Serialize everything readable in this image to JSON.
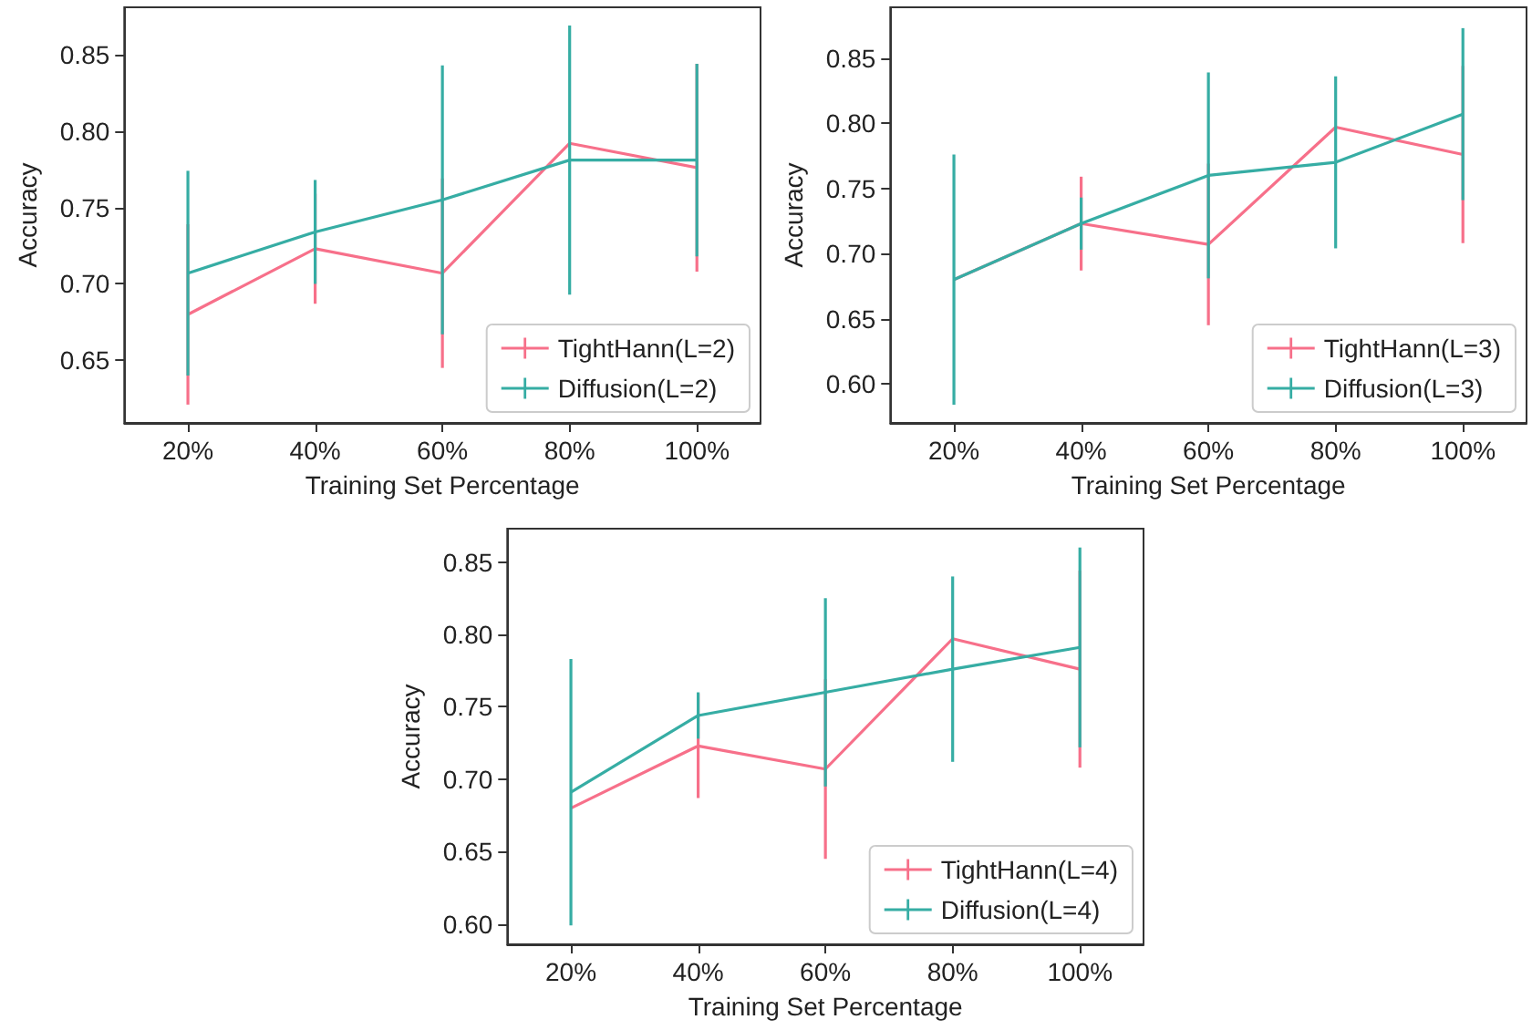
{
  "chart_data": [
    {
      "type": "line",
      "xlabel": "Training Set Percentage",
      "ylabel": "Accuracy",
      "categories": [
        "20%",
        "40%",
        "60%",
        "80%",
        "100%"
      ],
      "series": [
        {
          "name": "TightHann(L=2)",
          "color": "#f7708a",
          "values": [
            0.68,
            0.723,
            0.707,
            0.792,
            0.776
          ],
          "errors": [
            0.059,
            0.036,
            0.062,
            null,
            0.068
          ]
        },
        {
          "name": "Diffusion(L=2)",
          "color": "#36ada4",
          "values": [
            0.707,
            0.734,
            0.755,
            0.781,
            0.781
          ],
          "errors": [
            0.067,
            0.034,
            0.088,
            0.088,
            0.063
          ]
        }
      ],
      "ylim": [
        0.609,
        0.881
      ],
      "yticks": [
        {
          "value": 0.65,
          "label": "0.65"
        },
        {
          "value": 0.7,
          "label": "0.70"
        },
        {
          "value": 0.75,
          "label": "0.75"
        },
        {
          "value": 0.8,
          "label": "0.80"
        },
        {
          "value": 0.85,
          "label": "0.85"
        }
      ],
      "grid": false,
      "legend": "bottom right",
      "marker": "none"
    },
    {
      "type": "line",
      "xlabel": "Training Set Percentage",
      "ylabel": "Accuracy",
      "categories": [
        "20%",
        "40%",
        "60%",
        "80%",
        "100%"
      ],
      "series": [
        {
          "name": "TightHann(L=3)",
          "color": "#f7708a",
          "values": [
            0.68,
            0.723,
            0.707,
            0.797,
            0.776
          ],
          "errors": [
            null,
            0.036,
            0.062,
            null,
            0.068
          ]
        },
        {
          "name": "Diffusion(L=3)",
          "color": "#36ada4",
          "values": [
            0.68,
            0.723,
            0.76,
            0.77,
            0.807
          ],
          "errors": [
            0.096,
            0.02,
            0.079,
            0.066,
            0.066
          ]
        }
      ],
      "ylim": [
        0.57,
        0.889
      ],
      "yticks": [
        {
          "value": 0.6,
          "label": "0.60"
        },
        {
          "value": 0.65,
          "label": "0.65"
        },
        {
          "value": 0.7,
          "label": "0.70"
        },
        {
          "value": 0.75,
          "label": "0.75"
        },
        {
          "value": 0.8,
          "label": "0.80"
        },
        {
          "value": 0.85,
          "label": "0.85"
        }
      ],
      "grid": false,
      "legend": "bottom right",
      "marker": "none"
    },
    {
      "type": "line",
      "xlabel": "Training Set Percentage",
      "ylabel": "Accuracy",
      "categories": [
        "20%",
        "40%",
        "60%",
        "80%",
        "100%"
      ],
      "series": [
        {
          "name": "TightHann(L=4)",
          "color": "#f7708a",
          "values": [
            0.68,
            0.723,
            0.707,
            0.797,
            0.776
          ],
          "errors": [
            null,
            0.036,
            0.062,
            null,
            0.068
          ]
        },
        {
          "name": "Diffusion(L=4)",
          "color": "#36ada4",
          "values": [
            0.691,
            0.744,
            0.76,
            0.776,
            0.791
          ],
          "errors": [
            0.092,
            0.016,
            0.065,
            0.064,
            0.069
          ]
        }
      ],
      "ylim": [
        0.586,
        0.873
      ],
      "yticks": [
        {
          "value": 0.6,
          "label": "0.60"
        },
        {
          "value": 0.65,
          "label": "0.65"
        },
        {
          "value": 0.7,
          "label": "0.70"
        },
        {
          "value": 0.75,
          "label": "0.75"
        },
        {
          "value": 0.8,
          "label": "0.80"
        },
        {
          "value": 0.85,
          "label": "0.85"
        }
      ],
      "grid": false,
      "legend": "bottom right",
      "marker": "none"
    }
  ]
}
